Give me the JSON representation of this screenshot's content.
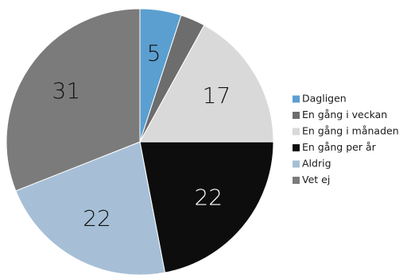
{
  "chart_data": {
    "type": "pie",
    "title": "",
    "slices": [
      {
        "label": "Dagligen",
        "value": 5,
        "color": "#5b9fd0",
        "data_label": "5",
        "label_color": "#111111"
      },
      {
        "label": "En gång i veckan",
        "value": 3,
        "color": "#6d6d6d",
        "data_label": "",
        "label_color": "#111111"
      },
      {
        "label": "En gång i månaden",
        "value": 17,
        "color": "#d9d9d9",
        "data_label": "17",
        "label_color": "#111111"
      },
      {
        "label": "En gång per år",
        "value": 22,
        "color": "#0d0d0d",
        "data_label": "22",
        "label_color": "#ffffff"
      },
      {
        "label": "Aldrig",
        "value": 22,
        "color": "#a6bfd6",
        "data_label": "22",
        "label_color": "#111111"
      },
      {
        "label": "Vet ej",
        "value": 31,
        "color": "#7b7b7b",
        "data_label": "31",
        "label_color": "#111111"
      }
    ],
    "legend": {
      "placement": "right",
      "entries": [
        "Dagligen",
        "En gång i veckan",
        "En gång i månaden",
        "En gång per år",
        "Aldrig",
        "Vet ej"
      ]
    }
  }
}
